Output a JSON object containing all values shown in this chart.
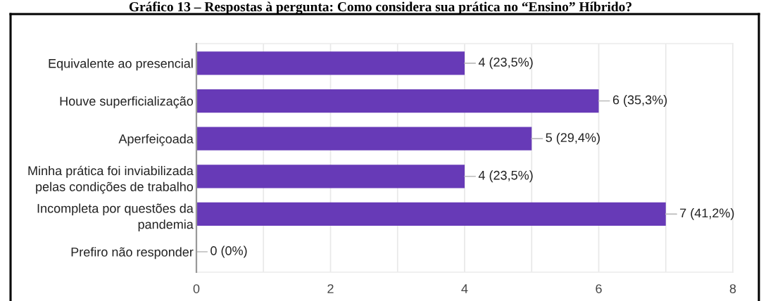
{
  "chart_data": {
    "type": "bar",
    "orientation": "horizontal",
    "title": "Gráfico 13 – Respostas à pergunta: Como considera sua prática no “Ensino” Híbrido?",
    "categories": [
      "Equivalente ao presencial",
      "Houve superficialização",
      "Aperfeiçoada",
      "Minha prática foi inviabilizada\npelas condições de trabalho",
      "Incompleta por questões da\npandemia",
      "Prefiro não responder"
    ],
    "values": [
      4,
      6,
      5,
      4,
      7,
      0
    ],
    "color": "#673ab7",
    "value_labels": [
      "4 (23,5%)",
      "6 (35,3%)",
      "5 (29,4%)",
      "4 (23,5%)",
      "7 (41,2%)",
      "0 (0%)"
    ],
    "xlim": [
      0,
      8
    ],
    "xticks": [
      0,
      {
        "value": 1,
        "label": null
      },
      2,
      {
        "value": 3,
        "label": null
      },
      4,
      {
        "value": 5,
        "label": null
      },
      6,
      {
        "value": 7,
        "label": null
      },
      8
    ],
    "grid": "x",
    "legend": false
  }
}
